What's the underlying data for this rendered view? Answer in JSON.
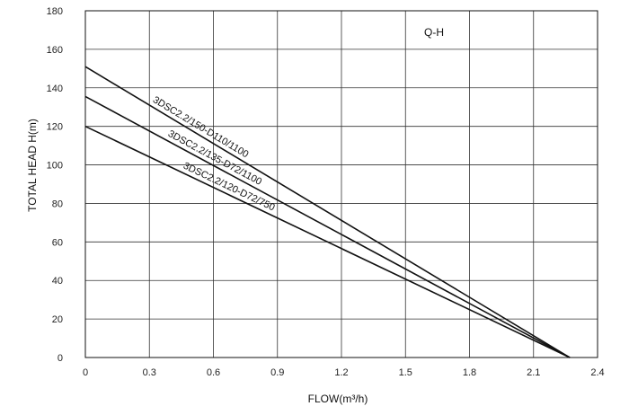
{
  "chart_data": {
    "type": "line",
    "title": "Q-H",
    "xlabel": "FLOW(m³/h)",
    "ylabel": "TOTAL HEAD H(m)",
    "xlim": [
      0,
      2.4
    ],
    "ylim": [
      0,
      180
    ],
    "xticks": [
      "0",
      "0.3",
      "0.6",
      "0.9",
      "1.2",
      "1.5",
      "1.8",
      "2.1",
      "2.4"
    ],
    "yticks": [
      "0",
      "20",
      "40",
      "60",
      "80",
      "100",
      "120",
      "140",
      "160",
      "180"
    ],
    "grid": true,
    "series": [
      {
        "name": "3DSC2.2/150-D110/1100",
        "x": [
          0,
          2.27
        ],
        "y": [
          151,
          0
        ],
        "color": "#111111"
      },
      {
        "name": "3DSC2.2/135-D72/1100",
        "x": [
          0,
          2.27
        ],
        "y": [
          135.5,
          0
        ],
        "color": "#111111"
      },
      {
        "name": "3DSC2.2/120-D72/750",
        "x": [
          0,
          2.27
        ],
        "y": [
          120,
          0
        ],
        "color": "#111111"
      }
    ]
  }
}
